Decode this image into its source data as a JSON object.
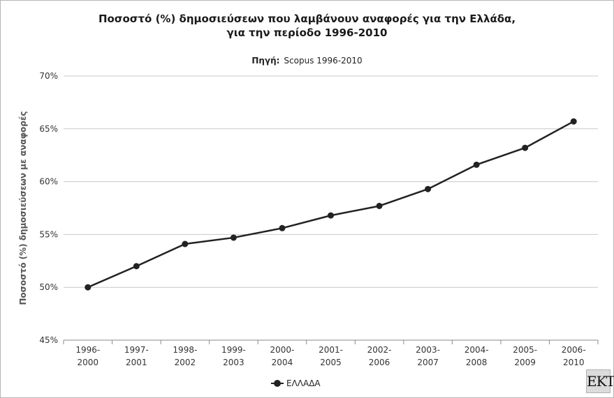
{
  "chart_data": {
    "type": "line",
    "title_line1": "Ποσοστό (%) δημοσιεύσεων που λαμβάνουν αναφορές για την Ελλάδα,",
    "title_line2": "για την περίοδο 1996-2010",
    "source_label": "Πηγή:",
    "source_value": "Scopus 1996-2010",
    "ylabel": "Ποσοστό (%) δημοσιεύσεων με αναφορές",
    "xlabel": "",
    "ylim": [
      45,
      70
    ],
    "y_ticks": [
      "45%",
      "50%",
      "55%",
      "60%",
      "65%",
      "70%"
    ],
    "y_tick_values": [
      45,
      50,
      55,
      60,
      65,
      70
    ],
    "categories": [
      [
        "1996-",
        "2000"
      ],
      [
        "1997-",
        "2001"
      ],
      [
        "1998-",
        "2002"
      ],
      [
        "1999-",
        "2003"
      ],
      [
        "2000-",
        "2004"
      ],
      [
        "2001-",
        "2005"
      ],
      [
        "2002-",
        "2006"
      ],
      [
        "2003-",
        "2007"
      ],
      [
        "2004-",
        "2008"
      ],
      [
        "2005-",
        "2009"
      ],
      [
        "2006-",
        "2010"
      ]
    ],
    "series": [
      {
        "name": "ΕΛΛΑΔΑ",
        "values": [
          50.0,
          52.0,
          54.1,
          54.7,
          55.6,
          56.8,
          57.7,
          59.3,
          61.6,
          63.2,
          65.7
        ]
      }
    ],
    "grid": "horizontal",
    "legend_position": "bottom-center",
    "line_color": "#222222"
  },
  "logo_text": "ΕΚΤ"
}
